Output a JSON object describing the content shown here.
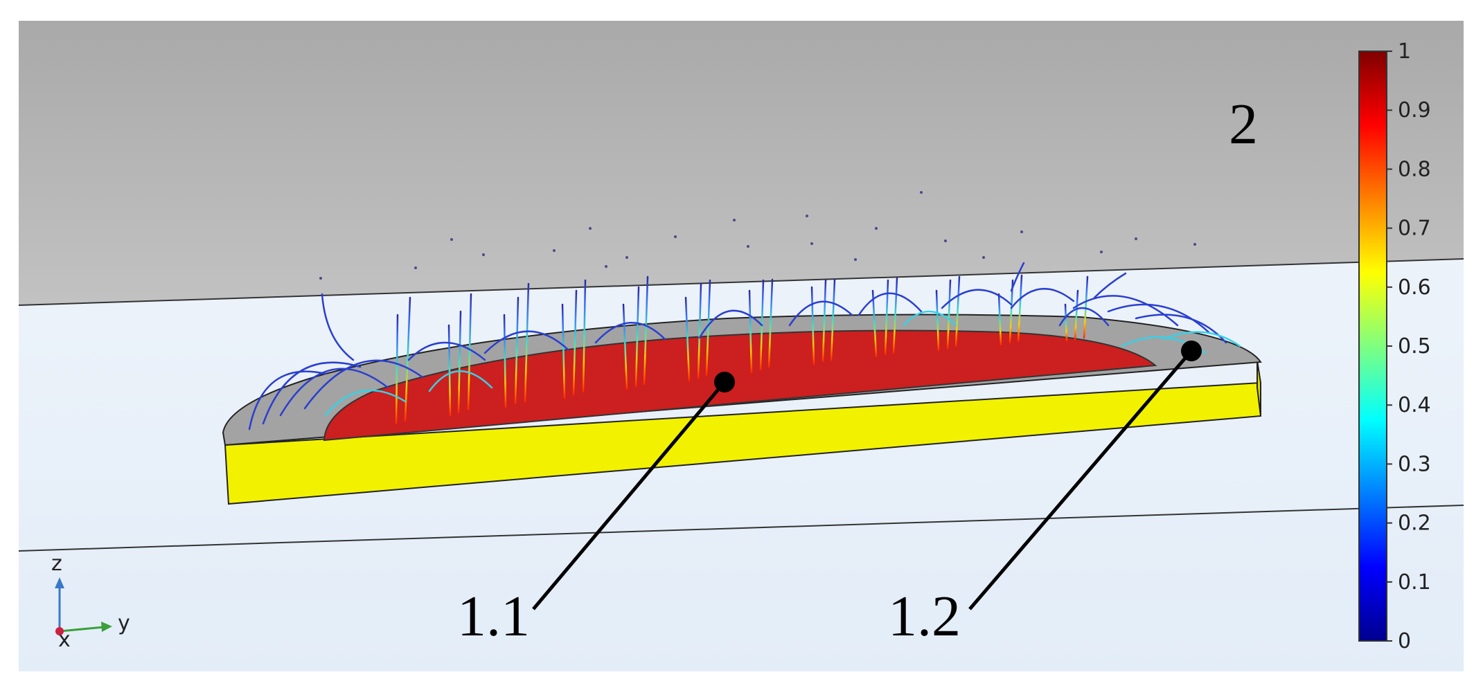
{
  "labels": {
    "upper_domain": "2",
    "body": "1.1",
    "rim": "1.2"
  },
  "axes_triad": {
    "z": "z",
    "y": "y",
    "x": "x"
  },
  "colorbar": {
    "min": 0,
    "max": 1,
    "ticks": [
      "0",
      "0.1",
      "0.2",
      "0.3",
      "0.4",
      "0.5",
      "0.6",
      "0.7",
      "0.8",
      "0.9",
      "1"
    ],
    "colormap": [
      "#00008f",
      "#0000ff",
      "#007fff",
      "#00ffff",
      "#7fff7f",
      "#ffff00",
      "#ff7f00",
      "#ff0000",
      "#7f0000"
    ]
  },
  "colors": {
    "upper_region": "#aaaaaa",
    "lower_region": "#e9f1fa",
    "slab_side": "#f2f200",
    "body_top": "#cc1f1f",
    "rim_top": "#a3a3a3",
    "callout": "#000000"
  }
}
